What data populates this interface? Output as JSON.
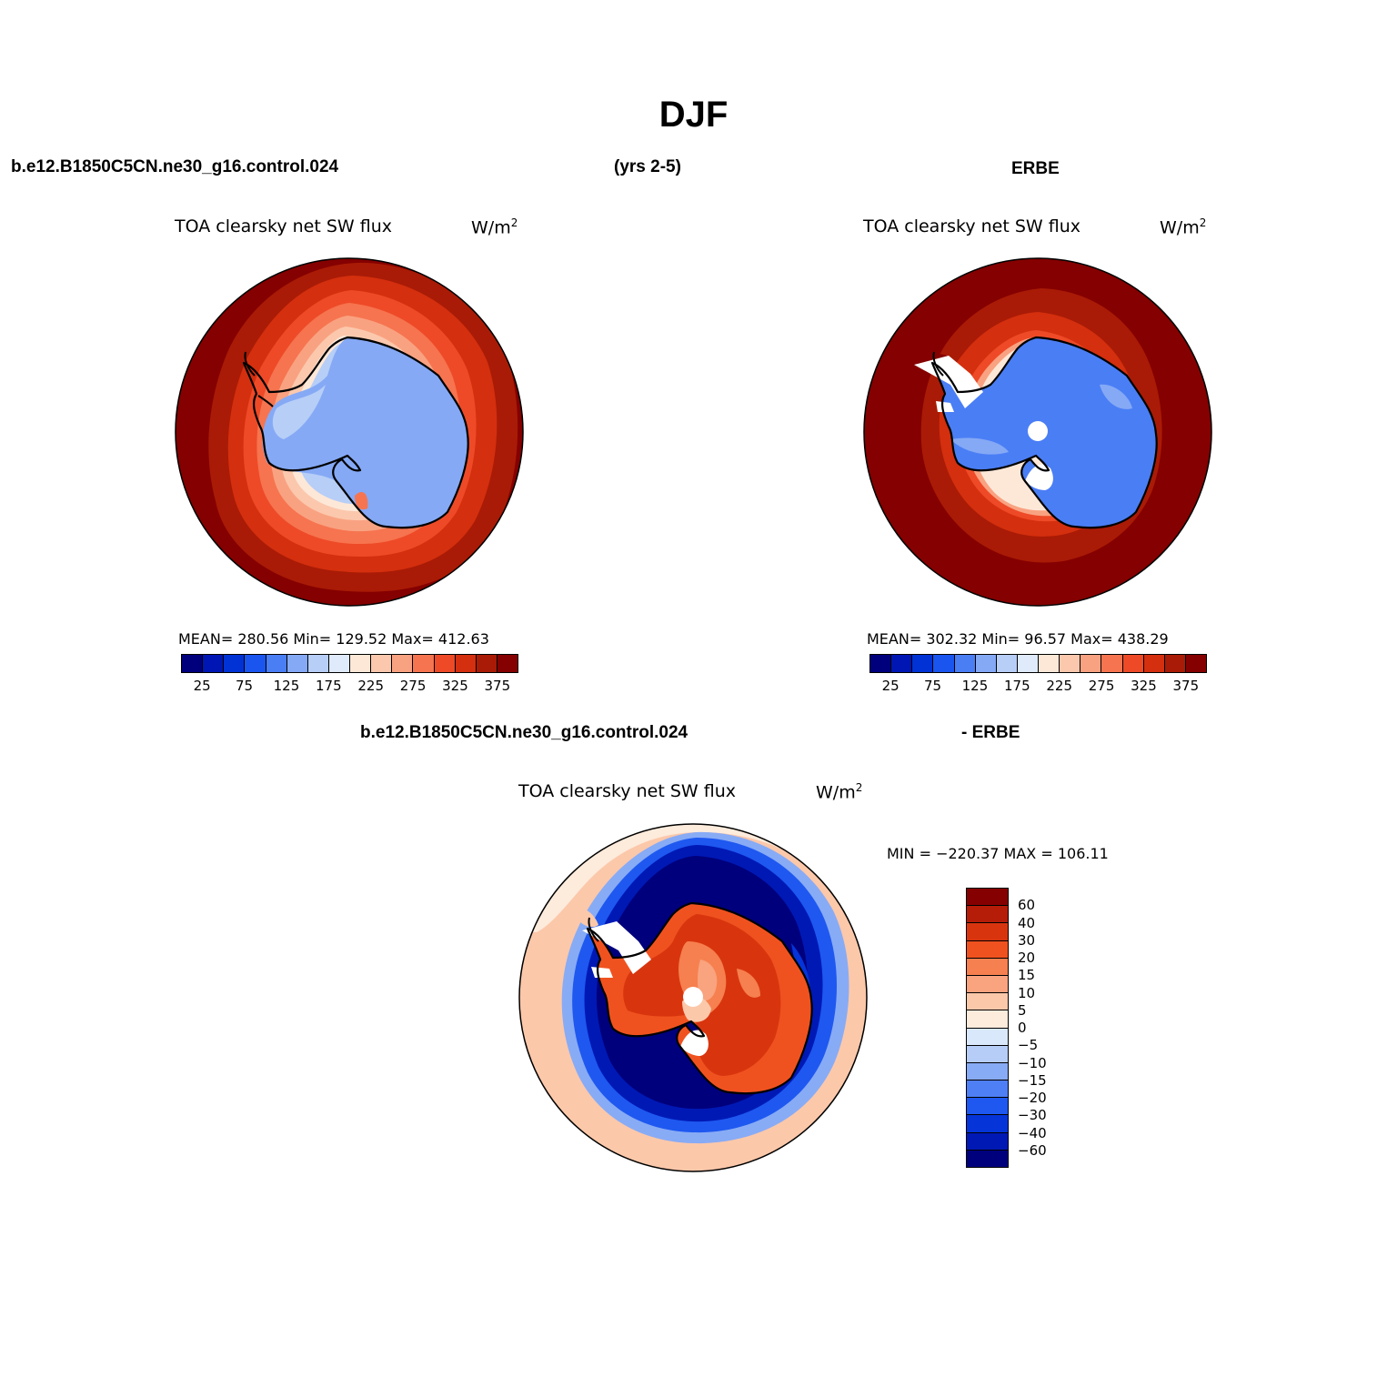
{
  "title": "DJF",
  "header": {
    "case_name": "b.e12.B1850C5CN.ne30_g16.control.024",
    "years": "(yrs 2-5)",
    "obs_name": "ERBE"
  },
  "diff_header": {
    "case_name": "b.e12.B1850C5CN.ne30_g16.control.024",
    "obs_name": "- ERBE"
  },
  "panels": {
    "model": {
      "title": "TOA clearsky net SW flux",
      "units_base": "W/m",
      "units_exp": "2",
      "stats": "MEAN= 280.56   Min=  129.52   Max= 412.63"
    },
    "obs": {
      "title": "TOA clearsky net SW flux",
      "units_base": "W/m",
      "units_exp": "2",
      "stats": "MEAN= 302.32   Min=   96.57   Max= 438.29"
    },
    "diff": {
      "title": "TOA clearsky net SW flux",
      "units_base": "W/m",
      "units_exp": "2",
      "stats": "MIN = −220.37 MAX = 106.11"
    }
  },
  "colorbar_abs": {
    "colors": [
      "#00007d",
      "#0016b4",
      "#0032d6",
      "#1a55f0",
      "#4a7ef5",
      "#85a9f5",
      "#b7cef7",
      "#dfeafa",
      "#fde8d8",
      "#fbc8ad",
      "#f9a281",
      "#f6744f",
      "#ee4a27",
      "#d42f0e",
      "#a91b06",
      "#850000"
    ],
    "tick_labels": [
      "25",
      "75",
      "125",
      "175",
      "225",
      "275",
      "325",
      "375"
    ]
  },
  "colorbar_diff": {
    "colors": [
      "#850000",
      "#b51d08",
      "#d8350f",
      "#f0521f",
      "#f6804f",
      "#f9a37f",
      "#fcc8aa",
      "#fdebdc",
      "#d9e8fa",
      "#b6cef7",
      "#88abf5",
      "#4f7ff5",
      "#1e58f0",
      "#0535d8",
      "#0019b5",
      "#00007d"
    ],
    "tick_labels": [
      "60",
      "40",
      "30",
      "20",
      "15",
      "10",
      "5",
      "0",
      "−5",
      "−10",
      "−15",
      "−20",
      "−30",
      "−40",
      "−60"
    ]
  }
}
